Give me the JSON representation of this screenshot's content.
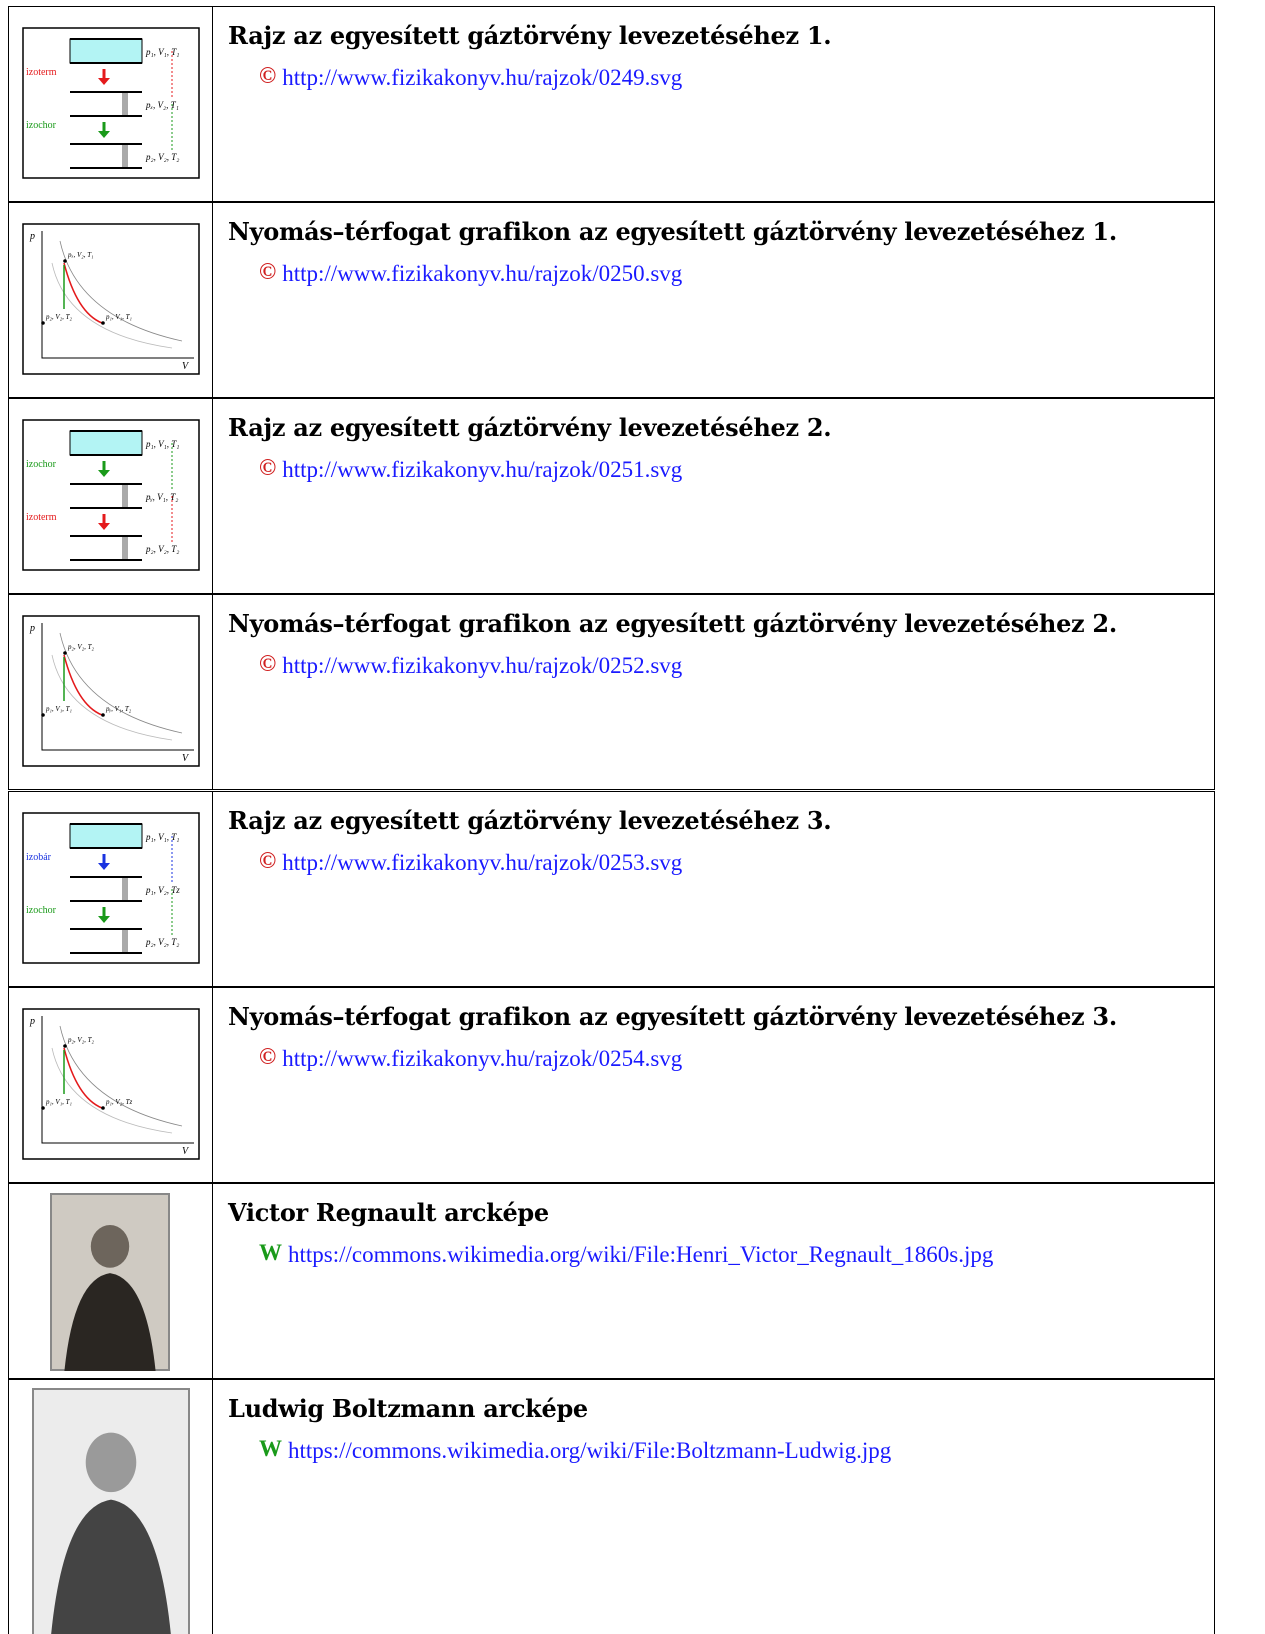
{
  "rows": [
    {
      "title": "Rajz az egyesített gáztörvény levezetéséhez 1.",
      "icon": "©",
      "link": "http://www.fizikakonyv.hu/rajzok/0249.svg",
      "thumb": {
        "processes": [
          {
            "label": "izoterm",
            "color": "#e41a1c"
          },
          {
            "label": "izochor",
            "color": "#1a9a1a"
          }
        ],
        "states": [
          "p₁, V₁, T₁",
          "pₓ, V₂, T₁",
          "p₂, V₂, T₂"
        ]
      }
    },
    {
      "title": "Nyomás–térfogat grafikon az egyesített gáztörvény levezetéséhez 1.",
      "icon": "©",
      "link": "http://www.fizikakonyv.hu/rajzok/0250.svg",
      "thumb": {
        "axes": [
          "p",
          "V"
        ],
        "states": [
          "pₓ, V₂, T₁",
          "p₂, V₂, T₂",
          "p₁, V₁, T₁"
        ]
      }
    },
    {
      "title": "Rajz az egyesített gáztörvény levezetéséhez 2.",
      "icon": "©",
      "link": "http://www.fizikakonyv.hu/rajzok/0251.svg",
      "thumb": {
        "processes": [
          {
            "label": "izochor",
            "color": "#1a9a1a"
          },
          {
            "label": "izoterm",
            "color": "#e41a1c"
          }
        ],
        "states": [
          "p₁, V₁, T₁",
          "pᵧ, V₁, T₂",
          "p₂, V₂, T₂"
        ]
      }
    },
    {
      "title": "Nyomás–térfogat grafikon az egyesített gáztörvény levezetéséhez 2.",
      "icon": "©",
      "link": "http://www.fizikakonyv.hu/rajzok/0252.svg",
      "thumb": {
        "axes": [
          "p",
          "V"
        ],
        "states": [
          "p₂, V₂, T₂",
          "p₁, V₁, T₁",
          "pᵧ, V₁, T₂"
        ]
      }
    },
    {
      "title": "Rajz az egyesített gáztörvény levezetéséhez 3.",
      "icon": "©",
      "link": "http://www.fizikakonyv.hu/rajzok/0253.svg",
      "thumb": {
        "processes": [
          {
            "label": "izobár",
            "color": "#1a33e0"
          },
          {
            "label": "izochor",
            "color": "#1a9a1a"
          }
        ],
        "states": [
          "p₁, V₁, T₁",
          "p₁, V₂, Tz",
          "p₂, V₂, T₂"
        ]
      }
    },
    {
      "title": "Nyomás–térfogat grafikon az egyesített gáztörvény levezetéséhez 3.",
      "icon": "©",
      "link": "http://www.fizikakonyv.hu/rajzok/0254.svg",
      "thumb": {
        "axes": [
          "p",
          "V"
        ],
        "states": [
          "p₂, V₂, T₂",
          "p₁, V₁, T₁",
          "p₁, V₂, Tz"
        ]
      }
    },
    {
      "title": "Victor Regnault arcképe",
      "icon": "W",
      "link": "https://commons.wikimedia.org/wiki/File:Henri_Victor_Regnault_1860s.jpg"
    },
    {
      "title": "Ludwig Boltzmann arcképe",
      "icon": "W",
      "link": "https://commons.wikimedia.org/wiki/File:Boltzmann-Ludwig.jpg"
    }
  ]
}
